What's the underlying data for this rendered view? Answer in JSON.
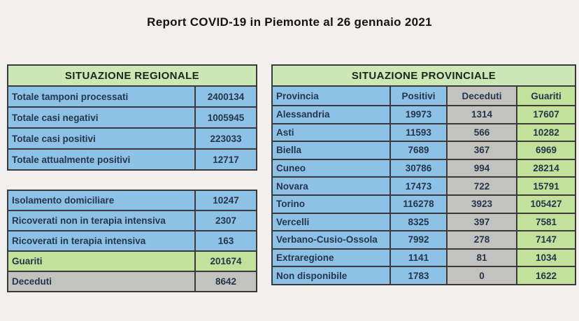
{
  "page": {
    "title": "Report COVID-19 in Piemonte al 26 gennaio 2021",
    "background_color": "#f1f0ee"
  },
  "colors": {
    "cell_blue": "#8ec1e6",
    "cell_gray": "#c2c2bf",
    "cell_green": "#c2e19b",
    "header_green": "#cee7b6",
    "border": "#3a3a3a",
    "text": "#24364b"
  },
  "regional": {
    "title": "SITUAZIONE REGIONALE",
    "rows": [
      {
        "label": "Totale tamponi processati",
        "value": "2400134",
        "tone": "blue"
      },
      {
        "label": "Totale casi negativi",
        "value": "1005945",
        "tone": "blue"
      },
      {
        "label": "Totale casi positivi",
        "value": "223033",
        "tone": "blue"
      },
      {
        "label": "Totale attualmente positivi",
        "value": "12717",
        "tone": "blue"
      }
    ]
  },
  "hospital": {
    "rows": [
      {
        "label": "Isolamento domiciliare",
        "value": "10247",
        "tone": "blue"
      },
      {
        "label": "Ricoverati non in terapia intensiva",
        "value": "2307",
        "tone": "blue"
      },
      {
        "label": "Ricoverati in terapia intensiva",
        "value": "163",
        "tone": "blue"
      },
      {
        "label": "Guariti",
        "value": "201674",
        "tone": "green"
      },
      {
        "label": "Deceduti",
        "value": "8642",
        "tone": "gray"
      }
    ]
  },
  "provincial": {
    "title": "SITUAZIONE PROVINCIALE",
    "columns": [
      "Provincia",
      "Positivi",
      "Deceduti",
      "Guariti"
    ],
    "column_tones": [
      "blue",
      "blue",
      "gray",
      "green"
    ],
    "rows": [
      {
        "provincia": "Alessandria",
        "positivi": "19973",
        "deceduti": "1314",
        "guariti": "17607"
      },
      {
        "provincia": "Asti",
        "positivi": "11593",
        "deceduti": "566",
        "guariti": "10282"
      },
      {
        "provincia": "Biella",
        "positivi": "7689",
        "deceduti": "367",
        "guariti": "6969"
      },
      {
        "provincia": "Cuneo",
        "positivi": "30786",
        "deceduti": "994",
        "guariti": "28214"
      },
      {
        "provincia": "Novara",
        "positivi": "17473",
        "deceduti": "722",
        "guariti": "15791"
      },
      {
        "provincia": "Torino",
        "positivi": "116278",
        "deceduti": "3923",
        "guariti": "105427"
      },
      {
        "provincia": "Vercelli",
        "positivi": "8325",
        "deceduti": "397",
        "guariti": "7581"
      },
      {
        "provincia": "Verbano-Cusio-Ossola",
        "positivi": "7992",
        "deceduti": "278",
        "guariti": "7147"
      },
      {
        "provincia": "Extraregione",
        "positivi": "1141",
        "deceduti": "81",
        "guariti": "1034"
      },
      {
        "provincia": "Non disponibile",
        "positivi": "1783",
        "deceduti": "0",
        "guariti": "1622"
      }
    ]
  }
}
